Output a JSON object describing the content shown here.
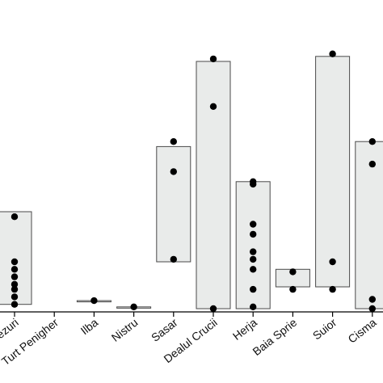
{
  "chart_data": {
    "type": "scatter",
    "title": "",
    "xlabel": "",
    "ylabel": "",
    "ylim": [
      0,
      100
    ],
    "grid": false,
    "legend": "none",
    "box_color": "#e9ebea",
    "point_color": "#000000",
    "categories": [
      "Rezuri",
      "Turt Penigher",
      "Ilba",
      "Nistru",
      "Sasar",
      "Dealul Crucii",
      "Herja",
      "Baia Sprie",
      "Suior",
      "Cisma"
    ],
    "ranges": [
      {
        "category": "Rezuri",
        "min": 3.0,
        "max": 40.0
      },
      {
        "category": "Turt Penigher",
        "min": null,
        "max": null
      },
      {
        "category": "Ilba",
        "min": 4.0,
        "max": 4.5
      },
      {
        "category": "Nistru",
        "min": 1.5,
        "max": 2.0
      },
      {
        "category": "Sasar",
        "min": 20.0,
        "max": 66.0
      },
      {
        "category": "Dealul Crucii",
        "min": -1.0,
        "max": 100.0
      },
      {
        "category": "Herja",
        "min": 1.0,
        "max": 52.0
      },
      {
        "category": "Baia Sprie",
        "min": 10.0,
        "max": 17.0
      },
      {
        "category": "Suior",
        "min": 10.0,
        "max": 102.0
      },
      {
        "category": "Cisma",
        "min": -1.0,
        "max": 68.0
      }
    ],
    "points": [
      {
        "category": "Rezuri",
        "values": [
          38,
          20,
          17,
          14,
          11,
          9,
          6,
          3
        ]
      },
      {
        "category": "Turt Penigher",
        "values": []
      },
      {
        "category": "Ilba",
        "values": [
          4.5
        ]
      },
      {
        "category": "Nistru",
        "values": [
          2
        ]
      },
      {
        "category": "Sasar",
        "values": [
          68,
          56,
          21
        ]
      },
      {
        "category": "Dealul Crucii",
        "values": [
          101,
          82,
          -0.5
        ]
      },
      {
        "category": "Herja",
        "values": [
          52,
          51,
          35,
          31,
          24,
          21,
          17,
          9,
          2
        ]
      },
      {
        "category": "Baia Sprie",
        "values": [
          16,
          9
        ]
      },
      {
        "category": "Suior",
        "values": [
          103,
          20,
          9
        ]
      },
      {
        "category": "Cisma",
        "values": [
          68,
          59,
          5,
          1
        ]
      }
    ]
  }
}
